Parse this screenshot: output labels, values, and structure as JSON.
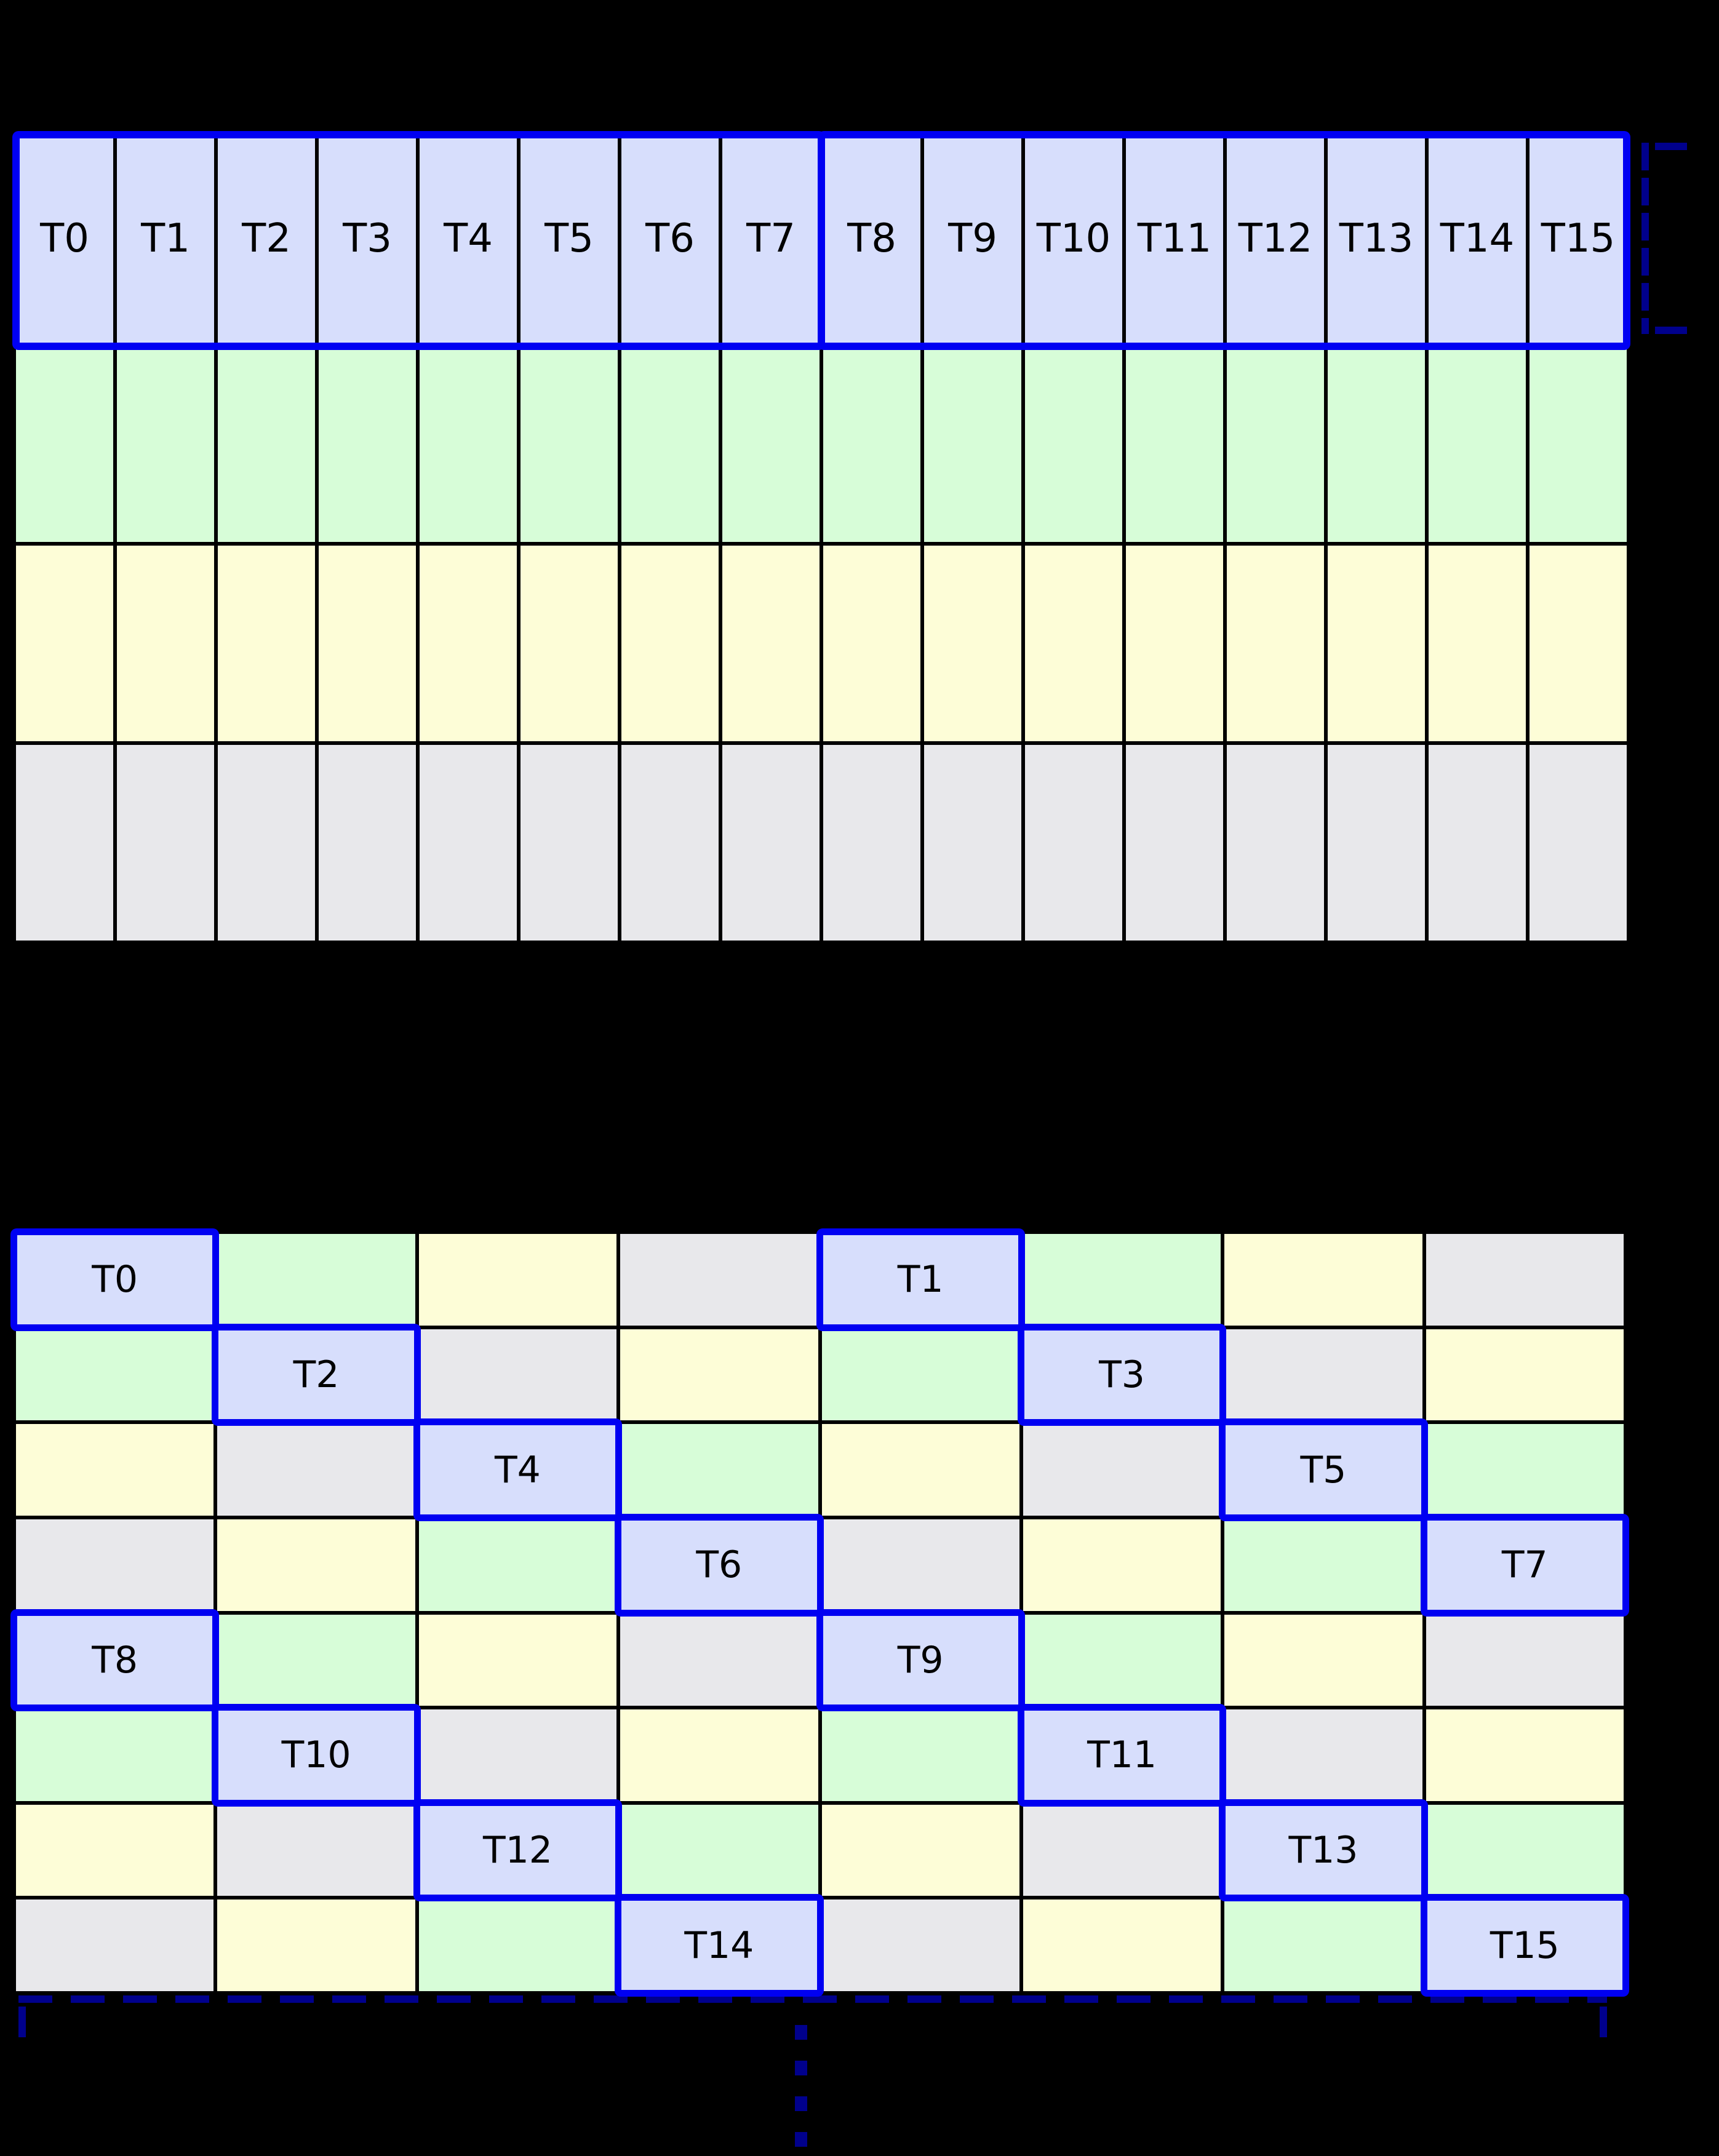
{
  "palette": {
    "lavender": "#d7defc",
    "green": "#d7fdd8",
    "yellow": "#fdfdd7",
    "gray": "#e8e8eb",
    "highlight_border": "#0000f2",
    "bracket": "#00008c",
    "grid_line": "#000000",
    "background": "#000000"
  },
  "thread_labels": [
    "T0",
    "T1",
    "T2",
    "T3",
    "T4",
    "T5",
    "T6",
    "T7",
    "T8",
    "T9",
    "T10",
    "T11",
    "T12",
    "T13",
    "T14",
    "T15"
  ],
  "table1": {
    "columns": 16,
    "thread_row_color": "lavender",
    "data_row_colors": [
      "green",
      "yellow",
      "gray"
    ],
    "warp_groups": [
      {
        "first_label": "T0",
        "last_label": "T7"
      },
      {
        "first_label": "T8",
        "last_label": "T15"
      }
    ]
  },
  "table2": {
    "columns": 8,
    "rows": 8,
    "color_matrix": [
      [
        "lavender",
        "green",
        "yellow",
        "gray",
        "lavender",
        "green",
        "yellow",
        "gray"
      ],
      [
        "green",
        "lavender",
        "gray",
        "yellow",
        "green",
        "lavender",
        "gray",
        "yellow"
      ],
      [
        "yellow",
        "gray",
        "lavender",
        "green",
        "yellow",
        "gray",
        "lavender",
        "green"
      ],
      [
        "gray",
        "yellow",
        "green",
        "lavender",
        "gray",
        "yellow",
        "green",
        "lavender"
      ],
      [
        "lavender",
        "green",
        "yellow",
        "gray",
        "lavender",
        "green",
        "yellow",
        "gray"
      ],
      [
        "green",
        "lavender",
        "gray",
        "yellow",
        "green",
        "lavender",
        "gray",
        "yellow"
      ],
      [
        "yellow",
        "gray",
        "lavender",
        "green",
        "yellow",
        "gray",
        "lavender",
        "green"
      ],
      [
        "gray",
        "yellow",
        "green",
        "lavender",
        "gray",
        "yellow",
        "green",
        "lavender"
      ]
    ],
    "highlights": [
      {
        "row": 0,
        "col": 0,
        "label": "T0"
      },
      {
        "row": 0,
        "col": 4,
        "label": "T1"
      },
      {
        "row": 1,
        "col": 1,
        "label": "T2"
      },
      {
        "row": 1,
        "col": 5,
        "label": "T3"
      },
      {
        "row": 2,
        "col": 2,
        "label": "T4"
      },
      {
        "row": 2,
        "col": 6,
        "label": "T5"
      },
      {
        "row": 3,
        "col": 3,
        "label": "T6"
      },
      {
        "row": 3,
        "col": 7,
        "label": "T7"
      },
      {
        "row": 4,
        "col": 0,
        "label": "T8"
      },
      {
        "row": 4,
        "col": 4,
        "label": "T9"
      },
      {
        "row": 5,
        "col": 1,
        "label": "T10"
      },
      {
        "row": 5,
        "col": 5,
        "label": "T11"
      },
      {
        "row": 6,
        "col": 2,
        "label": "T12"
      },
      {
        "row": 6,
        "col": 6,
        "label": "T13"
      },
      {
        "row": 7,
        "col": 3,
        "label": "T14"
      },
      {
        "row": 7,
        "col": 7,
        "label": "T15"
      }
    ]
  },
  "annotations": {
    "row_bracket_icon": "dashed-left-bracket-icon",
    "span_bracket_icon": "dashed-span-bracket-icon",
    "continuation_icon": "vertical-ellipsis-icon"
  }
}
